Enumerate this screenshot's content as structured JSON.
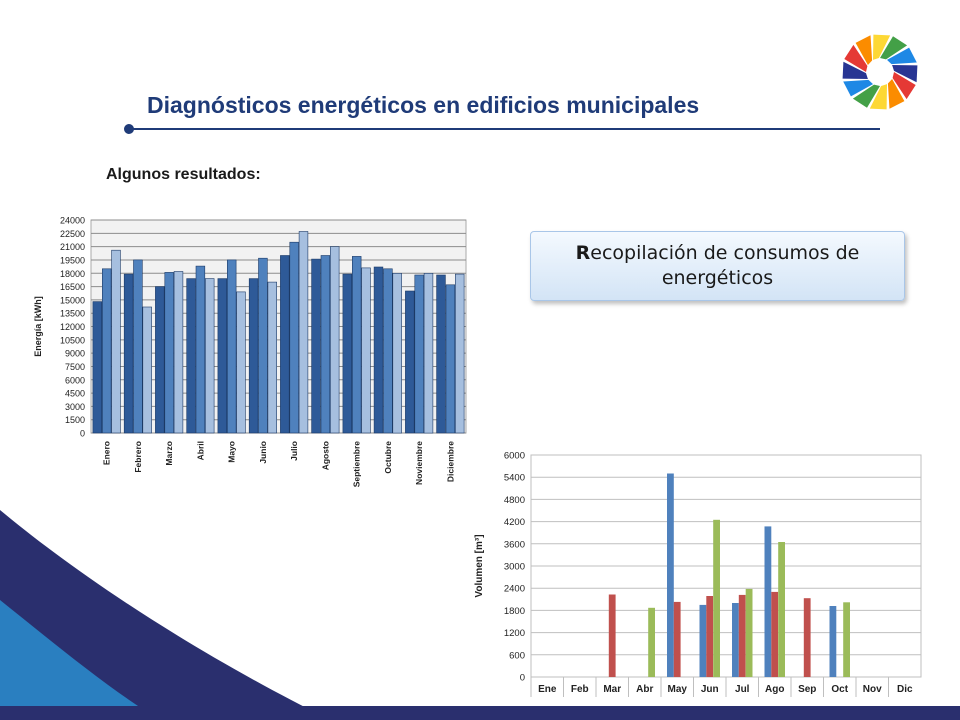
{
  "slide": {
    "title": "Diagnósticos energéticos en edificios municipales",
    "subtitle": "Algunos resultados:",
    "callout_first": "R",
    "callout_rest": "ecopilación de consumos de energéticos"
  },
  "logo": {
    "colors": [
      "#e53935",
      "#fb8c00",
      "#fdd835",
      "#43a047",
      "#1e88e5",
      "#283593"
    ]
  },
  "background": {
    "colors": [
      "#2a2f6e",
      "#2a7fc0"
    ]
  },
  "chart_data": [
    {
      "type": "bar",
      "title": "",
      "xlabel": "",
      "ylabel": "Energía [kWh]",
      "ylim": [
        0,
        24000
      ],
      "yticks": [
        0,
        1500,
        3000,
        4500,
        6000,
        7500,
        9000,
        10500,
        12000,
        13500,
        15000,
        16500,
        18000,
        19500,
        21000,
        22500,
        24000
      ],
      "grid": true,
      "legend": "none",
      "categories": [
        "Enero",
        "Febrero",
        "Marzo",
        "Abril",
        "Mayo",
        "Junio",
        "Julio",
        "Agosto",
        "Septiembre",
        "Octubre",
        "Noviembre",
        "Diciembre"
      ],
      "colors": [
        "#2e5a98",
        "#4f81bd",
        "#a6bfdf"
      ],
      "series": [
        {
          "values": [
            14800,
            17900,
            16500,
            17400,
            17400,
            17400,
            20000,
            19600,
            17900,
            18700,
            16000,
            17800
          ]
        },
        {
          "values": [
            18500,
            19500,
            18100,
            18800,
            19500,
            19700,
            21500,
            20000,
            19900,
            18500,
            17800,
            16700
          ]
        },
        {
          "values": [
            20600,
            14200,
            18200,
            17400,
            15900,
            17000,
            22700,
            21000,
            18600,
            18000,
            18000,
            17900
          ]
        }
      ]
    },
    {
      "type": "bar",
      "title": "",
      "xlabel": "",
      "ylabel": "Volumen [m³]",
      "ylim": [
        0,
        6000
      ],
      "yticks": [
        0,
        600,
        1200,
        1800,
        2400,
        3000,
        3600,
        4200,
        4800,
        5400,
        6000
      ],
      "grid": true,
      "legend": "none",
      "categories": [
        "Ene",
        "Feb",
        "Mar",
        "Abr",
        "May",
        "Jun",
        "Jul",
        "Ago",
        "Sep",
        "Oct",
        "Nov",
        "Dic"
      ],
      "colors": [
        "#4f81bd",
        "#c0504d",
        "#9bbb59"
      ],
      "series": [
        {
          "values": [
            0,
            0,
            0,
            0,
            5500,
            1950,
            2000,
            4070,
            0,
            1920,
            0,
            0
          ]
        },
        {
          "values": [
            0,
            0,
            2230,
            0,
            2030,
            2190,
            2220,
            2300,
            2130,
            0,
            0,
            0
          ]
        },
        {
          "values": [
            0,
            0,
            0,
            1870,
            0,
            4250,
            2380,
            3650,
            0,
            2020,
            0,
            0
          ]
        }
      ]
    }
  ]
}
